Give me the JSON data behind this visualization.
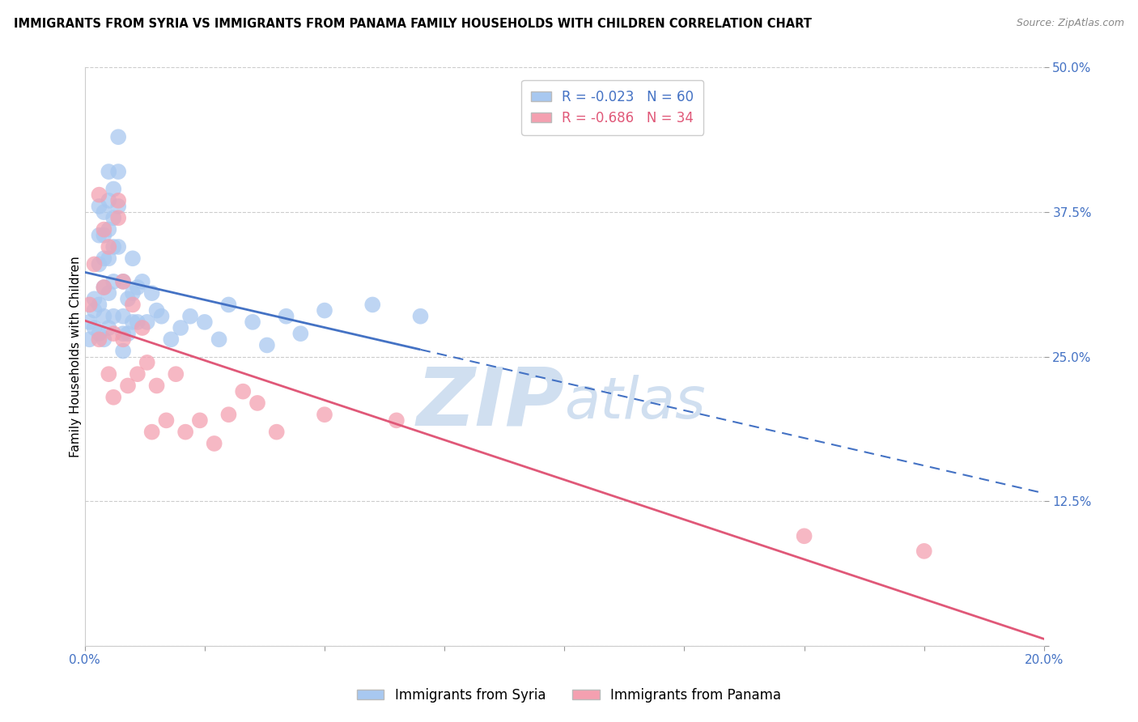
{
  "title": "IMMIGRANTS FROM SYRIA VS IMMIGRANTS FROM PANAMA FAMILY HOUSEHOLDS WITH CHILDREN CORRELATION CHART",
  "source": "Source: ZipAtlas.com",
  "ylabel": "Family Households with Children",
  "xlim": [
    0.0,
    0.2
  ],
  "ylim": [
    0.0,
    0.5
  ],
  "xticks": [
    0.0,
    0.025,
    0.05,
    0.075,
    0.1,
    0.125,
    0.15,
    0.175,
    0.2
  ],
  "yticks": [
    0.0,
    0.125,
    0.25,
    0.375,
    0.5
  ],
  "ytick_labels": [
    "",
    "12.5%",
    "25.0%",
    "37.5%",
    "50.0%"
  ],
  "syria_R": -0.023,
  "syria_N": 60,
  "panama_R": -0.686,
  "panama_N": 34,
  "syria_color": "#a8c8f0",
  "panama_color": "#f4a0b0",
  "syria_line_color": "#4472c4",
  "panama_line_color": "#e05878",
  "watermark_zip": "ZIP",
  "watermark_atlas": "atlas",
  "watermark_color": "#d0dff0",
  "legend_label_syria": "Immigrants from Syria",
  "legend_label_panama": "Immigrants from Panama",
  "syria_x": [
    0.001,
    0.001,
    0.002,
    0.002,
    0.002,
    0.003,
    0.003,
    0.003,
    0.003,
    0.003,
    0.004,
    0.004,
    0.004,
    0.004,
    0.004,
    0.004,
    0.005,
    0.005,
    0.005,
    0.005,
    0.005,
    0.005,
    0.006,
    0.006,
    0.006,
    0.006,
    0.006,
    0.007,
    0.007,
    0.007,
    0.007,
    0.008,
    0.008,
    0.008,
    0.008,
    0.009,
    0.009,
    0.01,
    0.01,
    0.01,
    0.011,
    0.011,
    0.012,
    0.013,
    0.014,
    0.015,
    0.016,
    0.018,
    0.02,
    0.022,
    0.025,
    0.028,
    0.03,
    0.035,
    0.038,
    0.042,
    0.045,
    0.05,
    0.06,
    0.07
  ],
  "syria_y": [
    0.265,
    0.28,
    0.3,
    0.275,
    0.29,
    0.38,
    0.355,
    0.33,
    0.295,
    0.27,
    0.375,
    0.355,
    0.335,
    0.31,
    0.285,
    0.265,
    0.41,
    0.385,
    0.36,
    0.335,
    0.305,
    0.275,
    0.395,
    0.37,
    0.345,
    0.315,
    0.285,
    0.44,
    0.41,
    0.38,
    0.345,
    0.285,
    0.315,
    0.255,
    0.27,
    0.3,
    0.27,
    0.305,
    0.335,
    0.28,
    0.31,
    0.28,
    0.315,
    0.28,
    0.305,
    0.29,
    0.285,
    0.265,
    0.275,
    0.285,
    0.28,
    0.265,
    0.295,
    0.28,
    0.26,
    0.285,
    0.27,
    0.29,
    0.295,
    0.285
  ],
  "panama_x": [
    0.001,
    0.002,
    0.003,
    0.003,
    0.004,
    0.004,
    0.005,
    0.005,
    0.006,
    0.006,
    0.007,
    0.007,
    0.008,
    0.008,
    0.009,
    0.01,
    0.011,
    0.012,
    0.013,
    0.014,
    0.015,
    0.017,
    0.019,
    0.021,
    0.024,
    0.027,
    0.03,
    0.033,
    0.036,
    0.04,
    0.05,
    0.065,
    0.15,
    0.175
  ],
  "panama_y": [
    0.295,
    0.33,
    0.39,
    0.265,
    0.36,
    0.31,
    0.345,
    0.235,
    0.27,
    0.215,
    0.385,
    0.37,
    0.315,
    0.265,
    0.225,
    0.295,
    0.235,
    0.275,
    0.245,
    0.185,
    0.225,
    0.195,
    0.235,
    0.185,
    0.195,
    0.175,
    0.2,
    0.22,
    0.21,
    0.185,
    0.2,
    0.195,
    0.095,
    0.082
  ]
}
